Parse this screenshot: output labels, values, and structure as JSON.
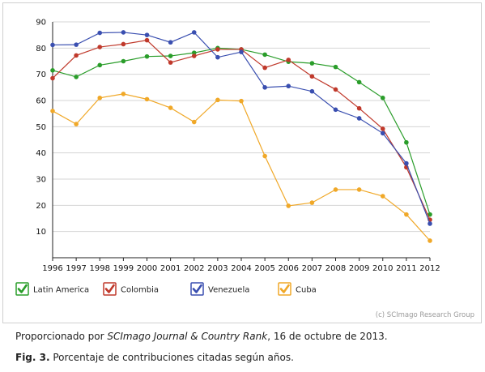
{
  "chart_data": {
    "type": "line",
    "title": "",
    "xlabel": "",
    "ylabel": "",
    "x": [
      "1996",
      "1997",
      "1998",
      "1999",
      "2000",
      "2001",
      "2002",
      "2003",
      "2004",
      "2005",
      "2006",
      "2007",
      "2008",
      "2009",
      "2010",
      "2011",
      "2012"
    ],
    "ylim": [
      0,
      90
    ],
    "yticks": [
      "10",
      "20",
      "30",
      "40",
      "50",
      "60",
      "70",
      "80",
      "90"
    ],
    "grid": "horizontal",
    "legend_position": "bottom",
    "series": [
      {
        "name": "Latin America",
        "color": "#2a9d2a",
        "values": [
          71.5,
          69,
          73.5,
          75,
          76.8,
          77,
          78.2,
          80,
          79.5,
          77.5,
          74.8,
          74.2,
          72.8,
          67,
          61,
          44,
          16.5
        ]
      },
      {
        "name": "Colombia",
        "color": "#c0392b",
        "values": [
          68.5,
          77.2,
          80.4,
          81.5,
          83,
          74.5,
          77,
          79.5,
          79.5,
          72.5,
          75.5,
          69.2,
          64.2,
          57,
          49.2,
          34.5,
          14.5
        ]
      },
      {
        "name": "Venezuela",
        "color": "#3a4fb0",
        "values": [
          81.2,
          81.3,
          85.8,
          86,
          85,
          82.2,
          86,
          76.5,
          78.5,
          65,
          65.5,
          63.5,
          56.5,
          53.2,
          47.5,
          36,
          13
        ]
      },
      {
        "name": "Cuba",
        "color": "#f0a828",
        "values": [
          56,
          51,
          61,
          62.5,
          60.5,
          57.2,
          51.8,
          60.2,
          59.8,
          38.8,
          19.8,
          21,
          26,
          26,
          23.5,
          16.5,
          6.5
        ]
      }
    ]
  },
  "credit": "(c) SCImago Research Group",
  "captions": {
    "source_prefix": "Proporcionado por ",
    "source_title": "SCImago Journal & Country Rank",
    "source_suffix": ", 16 de octubre de 2013.",
    "figure_label": "Fig. 3.",
    "figure_text": " Porcentaje de contribuciones citadas según años."
  }
}
